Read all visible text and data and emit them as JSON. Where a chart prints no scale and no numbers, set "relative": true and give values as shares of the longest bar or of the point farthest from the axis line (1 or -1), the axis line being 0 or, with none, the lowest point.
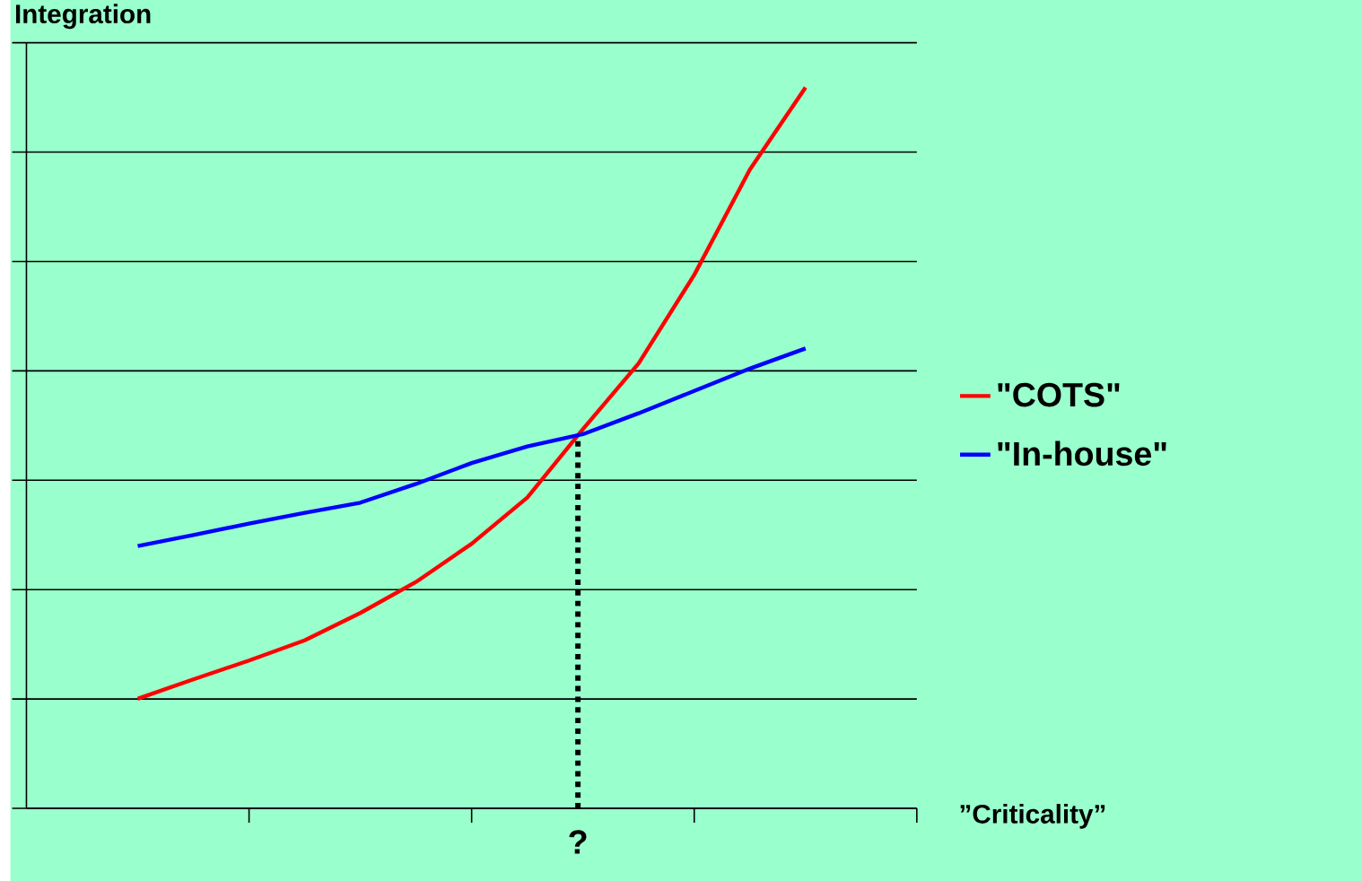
{
  "chart_data": {
    "type": "line",
    "relative": true,
    "title": "Integration",
    "xlabel": "”Criticality”",
    "categories": [
      null,
      null,
      null,
      null,
      null,
      null,
      null,
      null,
      null,
      null,
      null,
      null,
      null
    ],
    "grid": "y",
    "legend": "right",
    "line_style": "solid",
    "marker": "none",
    "series": [
      {
        "name": "\"COTS\"",
        "color": "#ff0000",
        "values": [
          0.152,
          0.179,
          0.205,
          0.233,
          0.271,
          0.314,
          0.367,
          0.431,
          0.526,
          0.617,
          0.74,
          0.886,
          1.0
        ]
      },
      {
        "name": "\"In-house\"",
        "color": "#0000ff",
        "values": [
          0.364,
          0.379,
          0.395,
          0.41,
          0.424,
          0.45,
          0.479,
          0.502,
          0.519,
          0.548,
          0.579,
          0.61,
          0.638
        ]
      }
    ],
    "annotations": [
      "?"
    ]
  }
}
